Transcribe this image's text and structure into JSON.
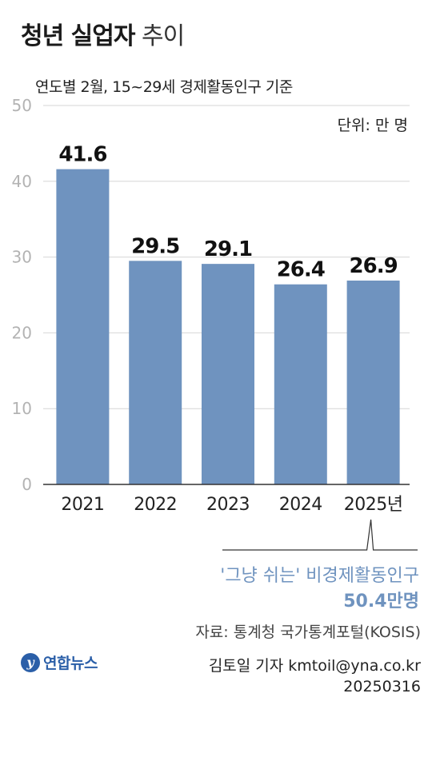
{
  "header": {
    "title_bold": "청년 실업자",
    "title_light": "추이",
    "subtitle": "연도별 2월, 15~29세 경제활동인구 기준",
    "unit": "단위: 만 명"
  },
  "chart_data": {
    "type": "bar",
    "title": "청년 실업자 추이",
    "subtitle": "연도별 2월, 15~29세 경제활동인구 기준",
    "categories": [
      "2021",
      "2022",
      "2023",
      "2024",
      "2025년"
    ],
    "values": [
      41.6,
      29.5,
      29.1,
      26.4,
      26.9
    ],
    "value_labels": [
      "41.6",
      "29.5",
      "29.1",
      "26.4",
      "26.9"
    ],
    "ylim": [
      0,
      50
    ],
    "yticks": [
      "0",
      "10",
      "20",
      "30",
      "40",
      "50"
    ],
    "grid": true,
    "bar_color": "#6f93bf",
    "unit": "단위: 만 명"
  },
  "annotation": {
    "line1": "'그냥 쉬는' 비경제활동인구",
    "line2": "50.4만명",
    "color": "#6f93bf"
  },
  "footer": {
    "source": "자료: 통계청 국가통계포털(KOSIS)",
    "credit": "김토일 기자 kmtoil@yna.co.kr",
    "date": "20250316",
    "logo_text": "연합뉴스",
    "logo_mark": "y",
    "logo_color": "#2b5fa8"
  }
}
